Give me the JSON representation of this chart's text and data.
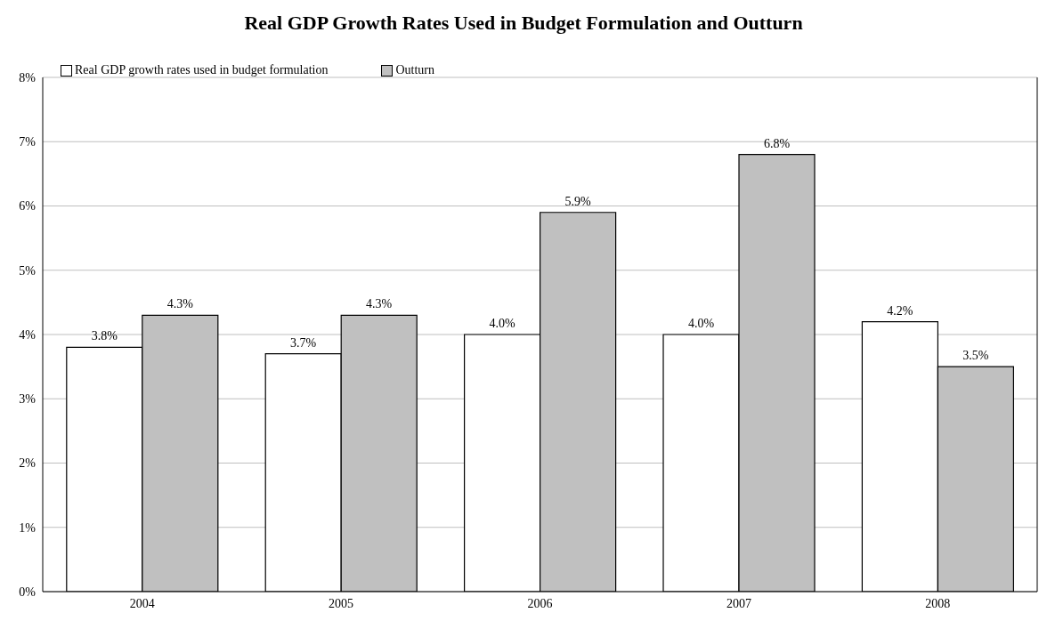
{
  "chart_data": {
    "type": "bar",
    "title": "Real GDP Growth Rates Used in Budget Formulation and Outturn",
    "categories": [
      "2004",
      "2005",
      "2006",
      "2007",
      "2008"
    ],
    "series": [
      {
        "name": "Real GDP growth rates used in budget formulation",
        "color": "#ffffff",
        "values": [
          3.8,
          3.7,
          4.0,
          4.0,
          4.2
        ],
        "value_labels": [
          "3.8%",
          "3.7%",
          "4.0%",
          "4.0%",
          "4.2%"
        ]
      },
      {
        "name": "Outturn",
        "color": "#c0c0c0",
        "values": [
          4.3,
          4.3,
          5.9,
          6.8,
          3.5
        ],
        "value_labels": [
          "4.3%",
          "4.3%",
          "5.9%",
          "6.8%",
          "3.5%"
        ]
      }
    ],
    "ylim": [
      0,
      8
    ],
    "yticks": [
      {
        "value": 0,
        "label": "0%"
      },
      {
        "value": 1,
        "label": "1%"
      },
      {
        "value": 2,
        "label": "2%"
      },
      {
        "value": 3,
        "label": "3%"
      },
      {
        "value": 4,
        "label": "4%"
      },
      {
        "value": 5,
        "label": "5%"
      },
      {
        "value": 6,
        "label": "6%"
      },
      {
        "value": 7,
        "label": "7%"
      },
      {
        "value": 8,
        "label": "8%"
      }
    ],
    "grid": "y",
    "legend": "top left"
  }
}
